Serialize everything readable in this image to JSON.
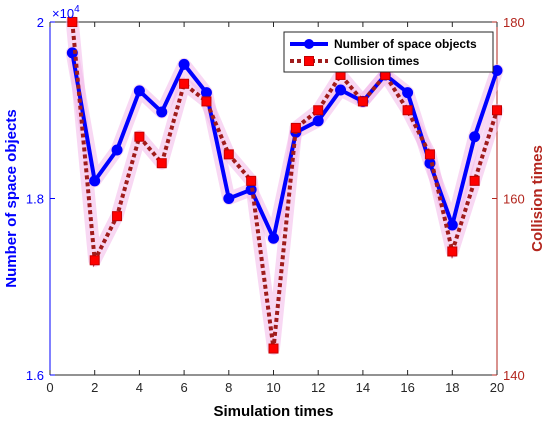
{
  "chart_data": {
    "type": "line",
    "xlabel": "Simulation times",
    "x": [
      1,
      2,
      3,
      4,
      5,
      6,
      7,
      8,
      9,
      10,
      11,
      12,
      13,
      14,
      15,
      16,
      17,
      18,
      19,
      20
    ],
    "xlim": [
      0,
      20
    ],
    "xticks": [
      "0",
      "2",
      "4",
      "6",
      "8",
      "10",
      "12",
      "14",
      "16",
      "18",
      "20"
    ],
    "left_axis": {
      "label": "Number of space objects",
      "ylim": [
        1.6,
        2.0
      ],
      "ticks": [
        "1.6",
        "1.8",
        "2"
      ],
      "exponent": "×10",
      "exponent_power": "4",
      "color": "#0000ff"
    },
    "right_axis": {
      "label": "Collision times",
      "ylim": [
        140,
        180
      ],
      "ticks": [
        "140",
        "160",
        "180"
      ],
      "color": "#b3261e"
    },
    "series": [
      {
        "name": "Number of space objects",
        "axis": "left",
        "color": "#0000ff",
        "values": [
          1.965,
          1.82,
          1.855,
          1.922,
          1.898,
          1.952,
          1.92,
          1.8,
          1.81,
          1.755,
          1.875,
          1.888,
          1.923,
          1.91,
          1.94,
          1.92,
          1.84,
          1.77,
          1.87,
          1.945
        ]
      },
      {
        "name": "Collision times",
        "axis": "right",
        "color": "#a01c1c",
        "marker_color": "#ff0000",
        "values": [
          180,
          153,
          158,
          167,
          164,
          173,
          171,
          165,
          162,
          143,
          168,
          170,
          174,
          171,
          174,
          170,
          165,
          154,
          162,
          170
        ]
      }
    ],
    "legend": "top-right"
  }
}
